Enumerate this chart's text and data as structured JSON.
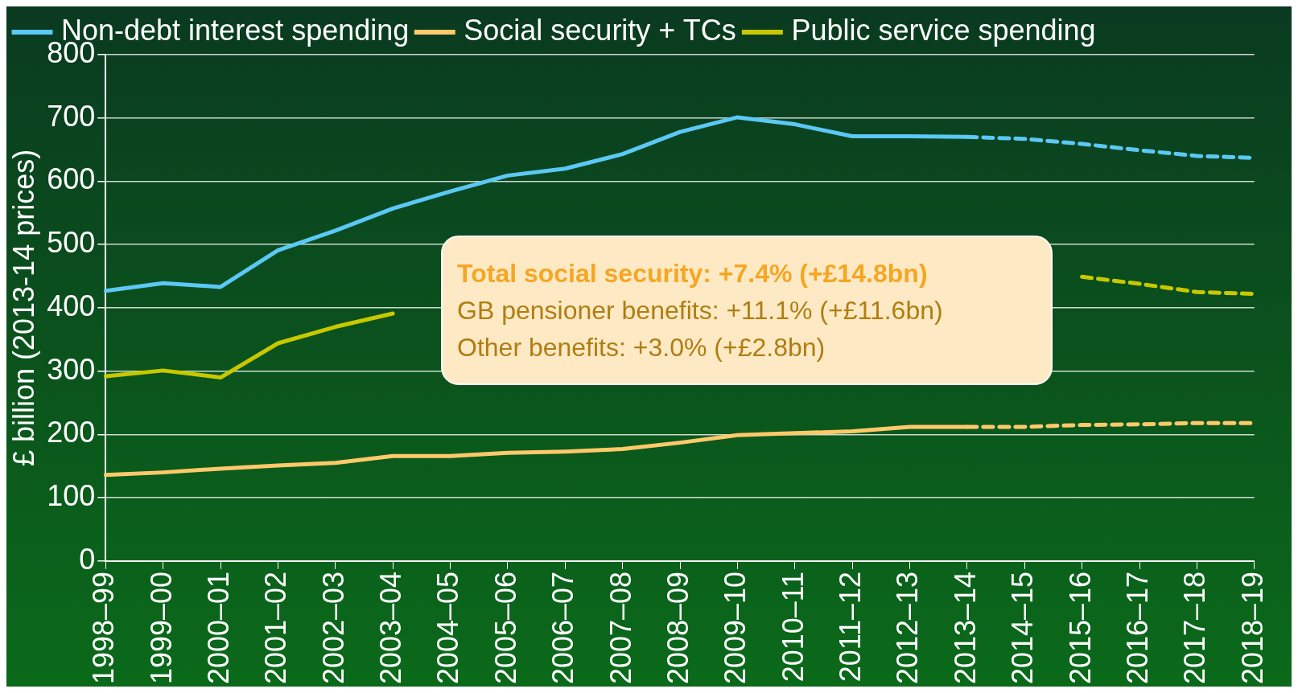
{
  "chart_data": {
    "type": "line",
    "ylabel": "£ billion (2013-14 prices)",
    "categories": [
      "1998–99",
      "1999–00",
      "2000–01",
      "2001–02",
      "2002–03",
      "2003–04",
      "2004–05",
      "2005–06",
      "2006–07",
      "2007–08",
      "2008–09",
      "2009–10",
      "2010–11",
      "2011–12",
      "2012–13",
      "2013–14",
      "2014–15",
      "2015–16",
      "2016–17",
      "2017–18",
      "2018–19"
    ],
    "series": [
      {
        "name": "Non-debt interest spending",
        "color": "#5bc8f5",
        "line_style": "solid",
        "values": [
          427,
          439,
          433,
          491,
          522,
          557,
          584,
          609,
          620,
          643,
          678,
          701,
          690,
          671,
          671,
          670,
          null,
          null,
          null,
          null,
          null
        ]
      },
      {
        "name": "Social security + TCs",
        "color": "#ffc96b",
        "line_style": "solid",
        "values": [
          136,
          140,
          146,
          151,
          155,
          166,
          166,
          171,
          173,
          177,
          187,
          199,
          202,
          205,
          212,
          212,
          null,
          null,
          null,
          null,
          null
        ]
      },
      {
        "name": "Public service spending",
        "color": "#c8c800",
        "line_style": "solid",
        "values": [
          292,
          301,
          290,
          344,
          370,
          391,
          null,
          null,
          null,
          null,
          null,
          null,
          null,
          null,
          null,
          null,
          null,
          null,
          null,
          null,
          null
        ]
      },
      {
        "color": "#5bc8f5",
        "line_style": "dashed",
        "values": [
          null,
          null,
          null,
          null,
          null,
          null,
          null,
          null,
          null,
          null,
          null,
          null,
          null,
          null,
          null,
          670,
          667,
          659,
          649,
          640,
          637
        ]
      },
      {
        "color": "#ffc96b",
        "line_style": "dashed",
        "values": [
          null,
          null,
          null,
          null,
          null,
          null,
          null,
          null,
          null,
          null,
          null,
          null,
          null,
          null,
          null,
          212,
          212,
          215,
          216,
          218,
          218
        ]
      },
      {
        "color": "#c8c800",
        "line_style": "dashed",
        "values": [
          null,
          null,
          null,
          null,
          null,
          null,
          null,
          null,
          null,
          null,
          null,
          null,
          null,
          null,
          null,
          null,
          null,
          449,
          438,
          425,
          422
        ]
      }
    ],
    "ylim": [
      0,
      800
    ],
    "yticks": [
      0,
      100,
      200,
      300,
      400,
      500,
      600,
      700,
      800
    ],
    "grid": "y",
    "legend": "top left",
    "marker": "none",
    "annotations": [
      "Total social security: +7.4% (+£14.8bn)",
      "GB pensioner benefits: +11.1% (+£11.6bn)",
      "Other benefits: +3.0% (+£2.8bn)"
    ]
  }
}
